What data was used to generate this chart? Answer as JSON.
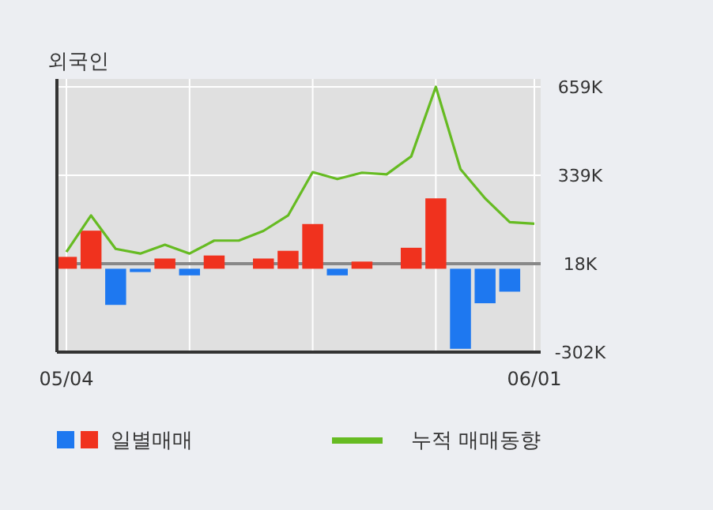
{
  "chart_data": {
    "type": "bar",
    "title": "외국인",
    "categories": [
      "05/04",
      null,
      null,
      null,
      null,
      null,
      null,
      null,
      null,
      null,
      null,
      null,
      null,
      null,
      null,
      null,
      null,
      null,
      null,
      "06/01"
    ],
    "series": [
      {
        "name": "일별매매",
        "colors": [
          "#f0321e",
          "#f0321e",
          "#1e78f0",
          "#1e78f0",
          "#f0321e",
          "#1e78f0",
          "#f0321e",
          "#f0321e",
          "#f0321e",
          "#f0321e",
          "#f0321e",
          "#1e78f0",
          "#f0321e",
          "#f0321e",
          "#f0321e",
          "#f0321e",
          "#1e78f0",
          "#1e78f0",
          "#1e78f0",
          "#1e78f0"
        ],
        "values": [
          43,
          138,
          -131,
          -12,
          37,
          -24,
          48,
          0,
          37,
          65,
          162,
          -24,
          26,
          0,
          76,
          255,
          -290,
          -125,
          -83,
          0
        ]
      },
      {
        "name": "누적 매매동향",
        "type": "line",
        "color": "#66bb22",
        "values": [
          61,
          193,
          72,
          55,
          87,
          55,
          102,
          102,
          137,
          193,
          350,
          325,
          348,
          342,
          407,
          659,
          361,
          255,
          169,
          163
        ]
      }
    ],
    "ylim": [
      -302,
      659
    ],
    "yticks": [
      {
        "value": 659,
        "label": "659K"
      },
      {
        "value": 339,
        "label": "339K"
      },
      {
        "value": 18,
        "label": "18K"
      },
      {
        "value": -302,
        "label": "-302K"
      }
    ],
    "ref_lines": [
      {
        "axis": "y",
        "value": 18,
        "color": "#888888"
      }
    ],
    "grid": true,
    "legend": "bottom"
  }
}
